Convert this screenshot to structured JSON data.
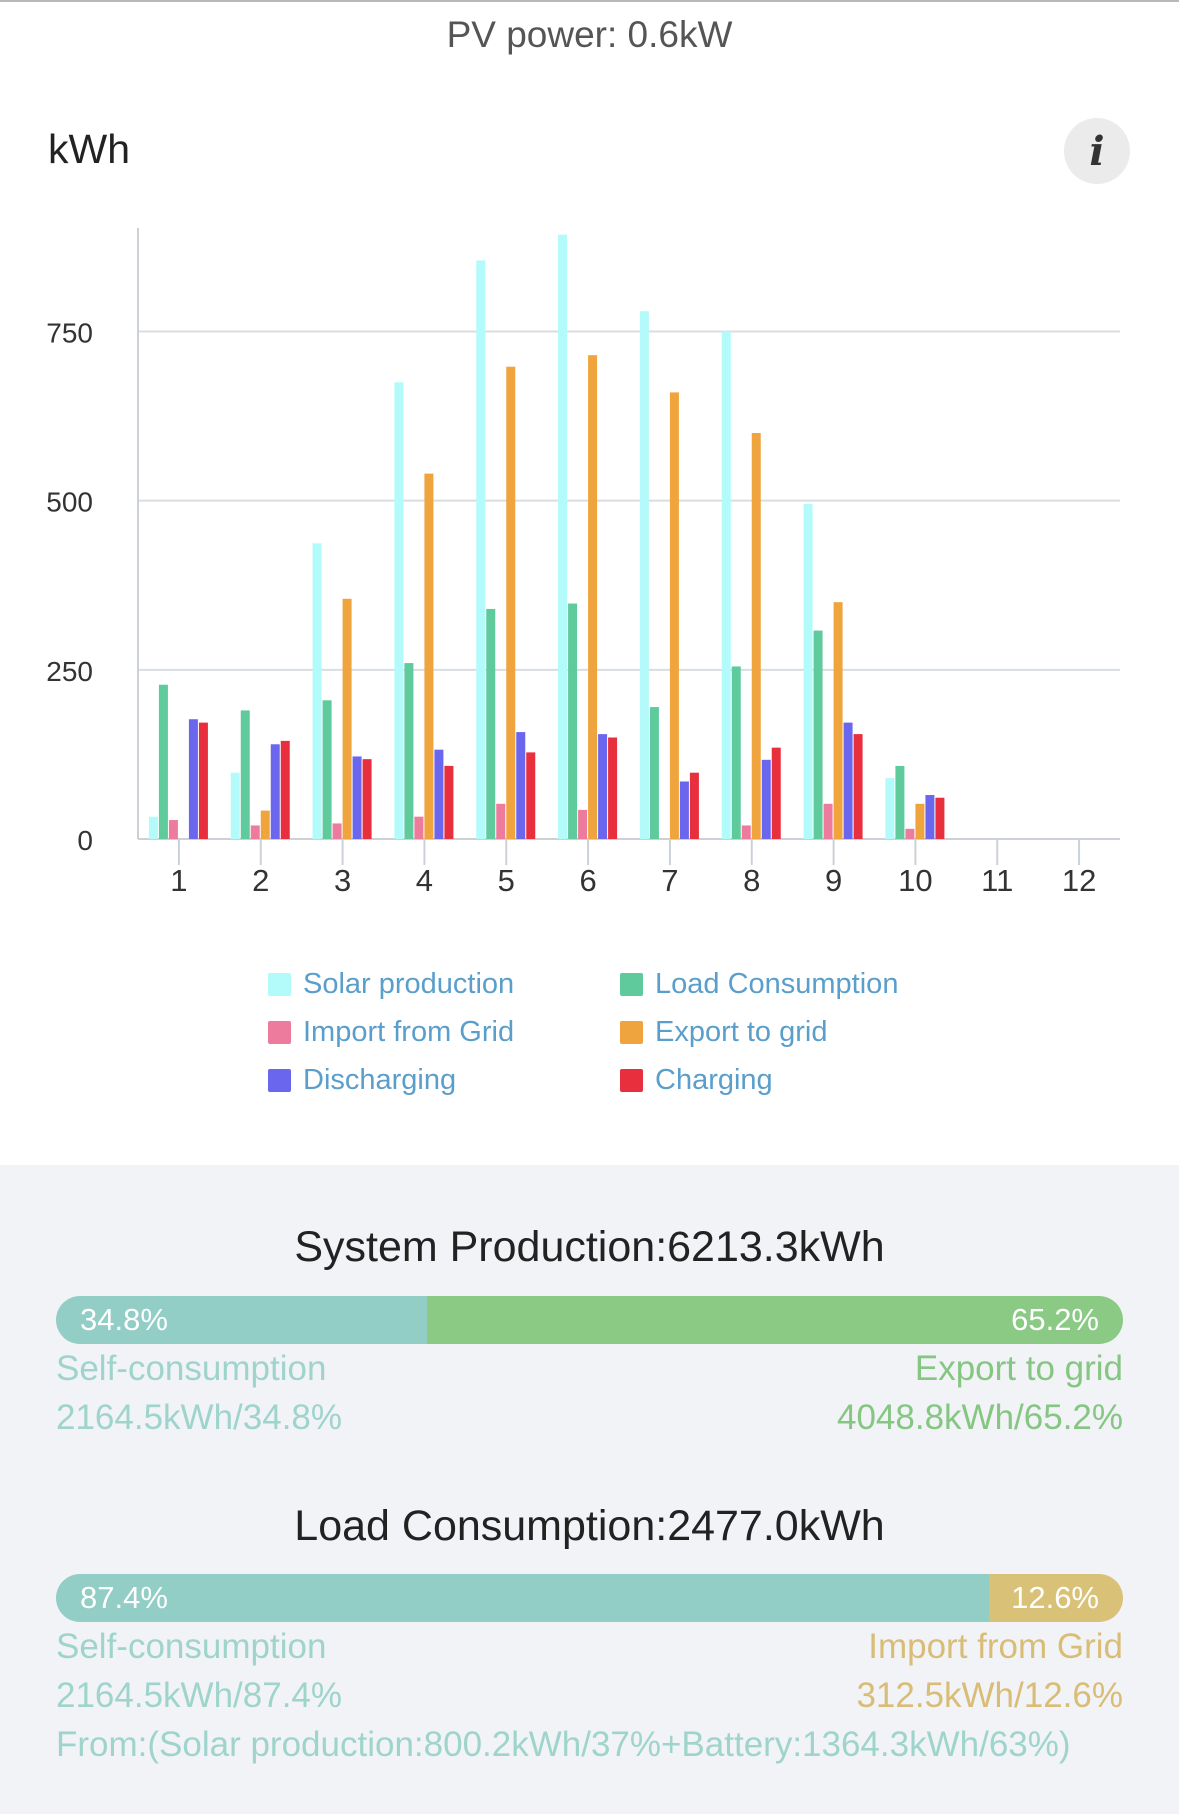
{
  "header": {
    "pv_power": "PV power: 0.6kW"
  },
  "chart_header": {
    "unit": "kWh",
    "info_icon": "i"
  },
  "colors": {
    "solar": "#b3fbfb",
    "load": "#5fcb9c",
    "import": "#ec7b9d",
    "export": "#f0a43e",
    "discharging": "#6a67ee",
    "charging": "#e82f3d",
    "self_bar": "#92cdc6",
    "export_bar": "#8bca84",
    "import_bar": "#d9c277",
    "self_text": "#9fd4cd",
    "export_text": "#86c683",
    "import_text": "#d9bd77"
  },
  "chart_data": {
    "type": "bar",
    "title": "",
    "xlabel": "",
    "ylabel": "kWh",
    "ylim": [
      0,
      900
    ],
    "yticks": [
      0,
      250,
      500,
      750
    ],
    "categories": [
      "1",
      "2",
      "3",
      "4",
      "5",
      "6",
      "7",
      "8",
      "9",
      "10",
      "11",
      "12"
    ],
    "series": [
      {
        "name": "Solar production",
        "key": "solar",
        "values": [
          33,
          98,
          437,
          675,
          855,
          893,
          780,
          750,
          495,
          90,
          0,
          0
        ]
      },
      {
        "name": "Load Consumption",
        "key": "load",
        "values": [
          228,
          190,
          205,
          260,
          340,
          348,
          195,
          255,
          308,
          108,
          0,
          0
        ]
      },
      {
        "name": "Import from Grid",
        "key": "import",
        "values": [
          28,
          20,
          23,
          33,
          52,
          43,
          0,
          20,
          52,
          15,
          0,
          0
        ]
      },
      {
        "name": "Export to grid",
        "key": "export",
        "values": [
          0,
          42,
          355,
          540,
          698,
          715,
          660,
          600,
          350,
          52,
          0,
          0
        ]
      },
      {
        "name": "Discharging",
        "key": "discharging",
        "values": [
          177,
          140,
          122,
          132,
          158,
          155,
          85,
          117,
          172,
          65,
          0,
          0
        ]
      },
      {
        "name": "Charging",
        "key": "charging",
        "values": [
          172,
          145,
          118,
          108,
          128,
          150,
          98,
          135,
          155,
          61,
          0,
          0
        ]
      }
    ]
  },
  "legend": {
    "solar": "Solar production",
    "load": "Load Consumption",
    "import": "Import from Grid",
    "export": "Export to grid",
    "discharging": "Discharging",
    "charging": "Charging"
  },
  "production": {
    "title": "System Production:6213.3kWh",
    "self_pct_value": 34.8,
    "self_pct": "34.8%",
    "export_pct": "65.2%",
    "self_label": "Self-consumption",
    "self_value": "2164.5kWh/34.8%",
    "export_label": "Export to grid",
    "export_value": "4048.8kWh/65.2%"
  },
  "consumption": {
    "title": "Load Consumption:2477.0kWh",
    "self_pct_value": 87.4,
    "self_pct": "87.4%",
    "import_pct": "12.6%",
    "self_label": "Self-consumption",
    "self_value": "2164.5kWh/87.4%",
    "import_label": "Import from Grid",
    "import_value": "312.5kWh/12.6%",
    "from_text": "From:(Solar production:800.2kWh/37%+Battery:1364.3kWh/63%)"
  }
}
